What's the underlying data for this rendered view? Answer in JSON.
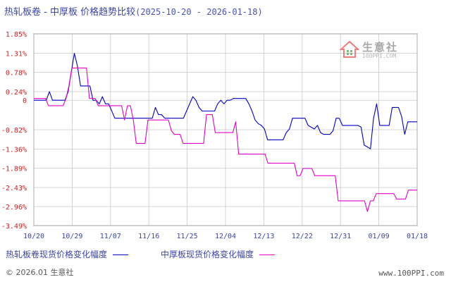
{
  "title": {
    "text": "热轧板卷 - 中厚板 价格趋势比较",
    "range": "(2025-10-20 - 2026-01-18)"
  },
  "watermark": {
    "brand": "生意社",
    "site": "100PPI.COM"
  },
  "footer": {
    "left": "© 2026.01 生意社",
    "right": "www.100PPI.com"
  },
  "colors": {
    "series1": "#0000c8",
    "series2": "#e600c8",
    "grid": "#c8c8c8",
    "axis": "#333333",
    "tick_label": "#d42020"
  },
  "chart_data": {
    "type": "line",
    "title": "热轧板卷 - 中厚板 价格趋势比较",
    "xlabel": "",
    "ylabel": "",
    "ylim": [
      -3.49,
      1.85
    ],
    "yticks": [
      1.85,
      1.31,
      0.78,
      0.24,
      0,
      -0.82,
      -1.36,
      -1.89,
      -2.43,
      -2.96,
      -3.49
    ],
    "ytick_labels": [
      "1.85%",
      "1.31%",
      "0.78%",
      "0.24%",
      "0",
      "-0.82%",
      "-1.36%",
      "-1.89%",
      "-2.43%",
      "-2.96%",
      "-3.49%"
    ],
    "xticks": [
      "10/20",
      "10/29",
      "11/07",
      "11/16",
      "11/25",
      "12/04",
      "12/13",
      "12/22",
      "12/31",
      "01/09",
      "01/18"
    ],
    "grid": true,
    "legend": "bottom",
    "series": [
      {
        "name": "热轧板卷现货价格变化幅度",
        "values": [
          0.0,
          0.0,
          0.0,
          0.0,
          0.0,
          0.24,
          0.0,
          0.0,
          0.0,
          0.0,
          0.0,
          0.24,
          0.78,
          1.31,
          0.95,
          0.4,
          0.4,
          0.4,
          0.4,
          0.0,
          0.0,
          -0.1,
          0.1,
          -0.1,
          -0.1,
          -0.3,
          -0.5,
          -0.5,
          -0.5,
          -0.5,
          -0.5,
          -0.5,
          -0.5,
          -0.5,
          -0.5,
          -0.5,
          -0.5,
          -0.5,
          -0.5,
          -0.2,
          -0.4,
          -0.4,
          -0.5,
          -0.5,
          -0.5,
          -0.5,
          -0.5,
          -0.5,
          -0.5,
          -0.3,
          -0.1,
          0.1,
          0.0,
          -0.2,
          -0.3,
          -0.3,
          -0.3,
          -0.3,
          -0.3,
          -0.1,
          0.0,
          -0.1,
          0.0,
          0.0,
          0.05,
          0.05,
          0.05,
          0.05,
          0.05,
          -0.1,
          -0.3,
          -0.55,
          -0.65,
          -0.7,
          -0.8,
          -1.1,
          -1.1,
          -1.1,
          -1.1,
          -1.1,
          -1.1,
          -0.9,
          -0.8,
          -0.5,
          -0.5,
          -0.5,
          -0.5,
          -0.5,
          -0.7,
          -0.75,
          -0.8,
          -0.7,
          -0.9,
          -0.95,
          -0.95,
          -0.95,
          -0.85,
          -0.5,
          -0.5,
          -0.7,
          -0.7,
          -0.7,
          -0.7,
          -0.7,
          -0.7,
          -0.75,
          -1.25,
          -1.3,
          -1.35,
          -0.5,
          -0.1,
          -0.7,
          -0.7,
          -0.7,
          -0.7,
          -0.2,
          -0.2,
          -0.2,
          -0.45,
          -0.95,
          -0.6,
          -0.6,
          -0.6,
          -0.6
        ]
      },
      {
        "name": "中厚板现货价格变化幅度",
        "values": [
          0.05,
          0.05,
          0.05,
          0.05,
          0.05,
          -0.15,
          -0.15,
          -0.15,
          -0.15,
          -0.15,
          -0.15,
          0.05,
          0.4,
          0.9,
          0.9,
          0.9,
          0.9,
          0.9,
          0.9,
          0.05,
          0.05,
          0.05,
          -0.15,
          -0.15,
          -0.15,
          -0.15,
          -0.15,
          -0.15,
          -0.15,
          -0.15,
          -0.15,
          -0.55,
          -0.15,
          -0.15,
          -0.55,
          -1.2,
          -1.2,
          -1.2,
          -1.2,
          -0.55,
          -0.55,
          -0.55,
          -0.55,
          -0.55,
          -0.55,
          -0.55,
          -0.55,
          -0.85,
          -0.95,
          -0.95,
          -0.95,
          -1.2,
          -1.2,
          -1.2,
          -1.2,
          -1.2,
          -1.2,
          -1.2,
          -1.2,
          -0.4,
          -0.4,
          -0.4,
          -0.9,
          -0.9,
          -0.9,
          -0.9,
          -0.9,
          -0.9,
          -0.9,
          -0.6,
          -1.5,
          -1.5,
          -1.5,
          -1.5,
          -1.5,
          -1.5,
          -1.5,
          -1.5,
          -1.5,
          -1.5,
          -1.75,
          -1.75,
          -1.75,
          -1.75,
          -1.75,
          -1.75,
          -1.75,
          -1.75,
          -1.75,
          -1.75,
          -2.1,
          -2.1,
          -1.9,
          -1.9,
          -1.9,
          -1.9,
          -2.1,
          -2.1,
          -2.1,
          -2.1,
          -2.1,
          -2.1,
          -2.1,
          -2.1,
          -2.8,
          -2.8,
          -2.8,
          -2.8,
          -2.8,
          -2.8,
          -2.8,
          -2.8,
          -2.8,
          -2.8,
          -3.1,
          -2.8,
          -2.8,
          -2.6,
          -2.6,
          -2.6,
          -2.6,
          -2.6,
          -2.6,
          -2.6,
          -2.75,
          -2.75,
          -2.75,
          -2.75,
          -2.5,
          -2.5,
          -2.5,
          -2.5
        ]
      }
    ]
  }
}
